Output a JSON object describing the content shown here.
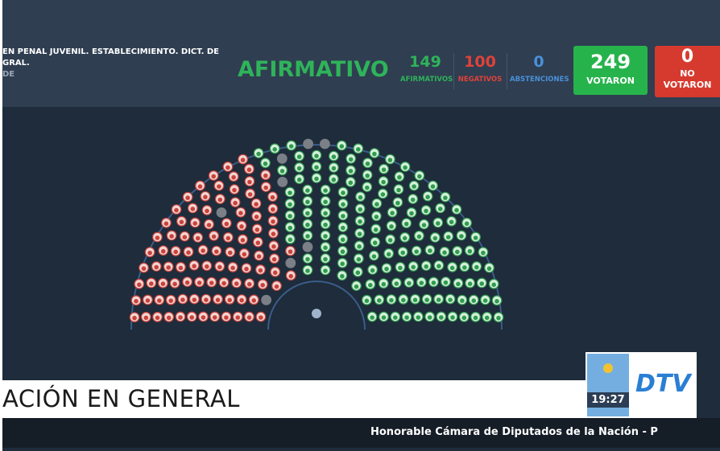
{
  "header": {
    "motion": "EN PENAL JUVENIL. ESTABLECIMIENTO. DICT. DE",
    "motion_line2": "GRAL.",
    "motion_line3": "DE",
    "result": "AFIRMATIVO"
  },
  "vote": {
    "affirmative": {
      "count": 149,
      "label": "AFIRMATIVOS"
    },
    "negative": {
      "count": 100,
      "label": "NEGATIVOS"
    },
    "abstention": {
      "count": 0,
      "label": "ABSTENCIONES"
    },
    "voted": {
      "count": 249,
      "label": "VOTARON"
    },
    "not_voted": {
      "count": 0,
      "label": "NO VOTARON"
    }
  },
  "banner": {
    "title": "ACIÓN EN GENERAL",
    "ticker": "Honorable Cámara de Diputados de la Nación - P"
  },
  "logo": {
    "time": "19:27",
    "channel": "DTV"
  }
}
